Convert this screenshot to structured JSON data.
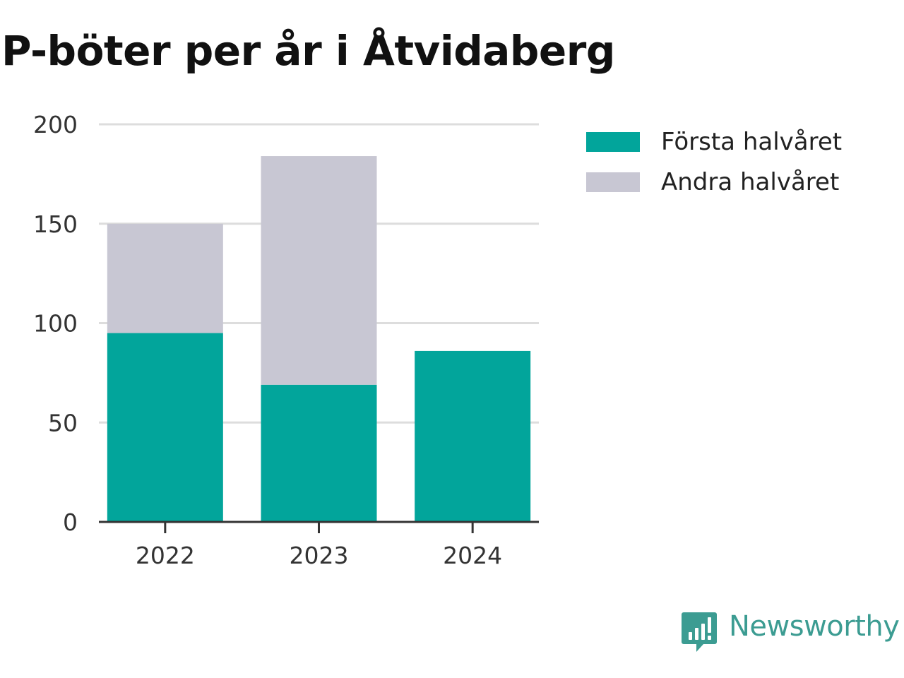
{
  "chart_data": {
    "type": "bar",
    "stacked": true,
    "title": "P-böter per år i Åtvidaberg",
    "categories": [
      "2022",
      "2023",
      "2024"
    ],
    "series": [
      {
        "name": "Första halvåret",
        "values": [
          95,
          69,
          86
        ],
        "color": "#02a59b"
      },
      {
        "name": "Andra halvåret",
        "values": [
          55,
          115,
          0
        ],
        "color": "#c8c7d3"
      }
    ],
    "yticks": [
      0,
      50,
      100,
      150,
      200
    ],
    "ylim": [
      0,
      200
    ],
    "grid": true,
    "legend_position": "top-right"
  },
  "brand": {
    "name": "Newsworthy",
    "icon": "newsworthy-logo-icon",
    "color": "#3c9c92"
  }
}
